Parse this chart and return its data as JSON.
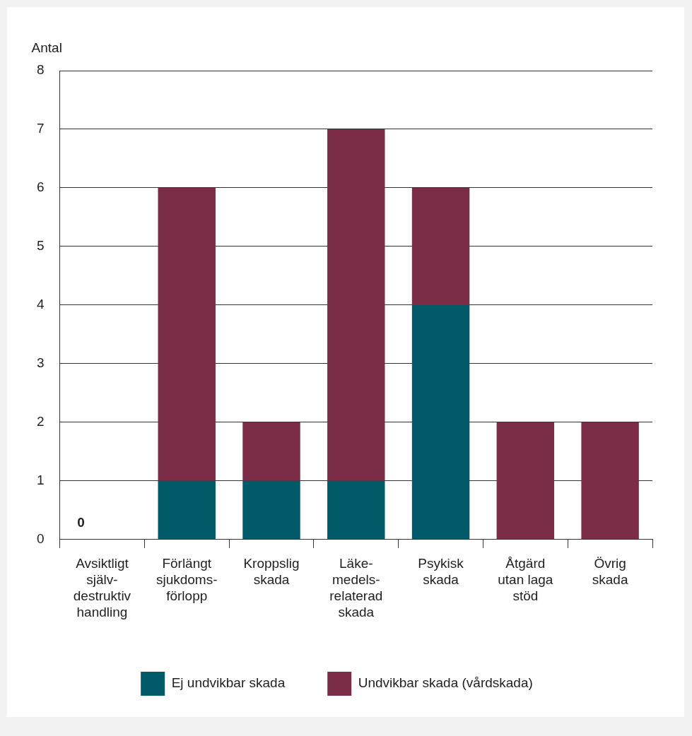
{
  "chart_data": {
    "type": "bar",
    "ylabel": "Antal",
    "categories": [
      "Avsiktligt\nsjälv-\ndestruktiv\nhandling",
      "Förlängt\nsjukdoms-\nförlopp",
      "Kroppslig\nskada",
      "Läke-\nmedels-\nrelaterad\nskada",
      "Psykisk\nskada",
      "Åtgärd\nutan laga\nstöd",
      "Övrig\nskada"
    ],
    "series": [
      {
        "name": "Ej undvikbar skada",
        "color": "#005a67",
        "values": [
          0,
          1,
          1,
          1,
          4,
          0,
          0
        ]
      },
      {
        "name": "Undvikbar skada (vårdskada)",
        "color": "#7b2d47",
        "values": [
          0,
          5,
          1,
          6,
          2,
          2,
          2
        ]
      }
    ],
    "stacked": true,
    "ylim": [
      0,
      8
    ],
    "yticks": [
      0,
      1,
      2,
      3,
      4,
      5,
      6,
      7,
      8
    ],
    "grid": "y",
    "legend": "bottom",
    "annotations": [
      {
        "text": "0",
        "x": "Avsiktligt\nsjälv-\ndestruktiv\nhandling",
        "y": 0
      }
    ]
  }
}
